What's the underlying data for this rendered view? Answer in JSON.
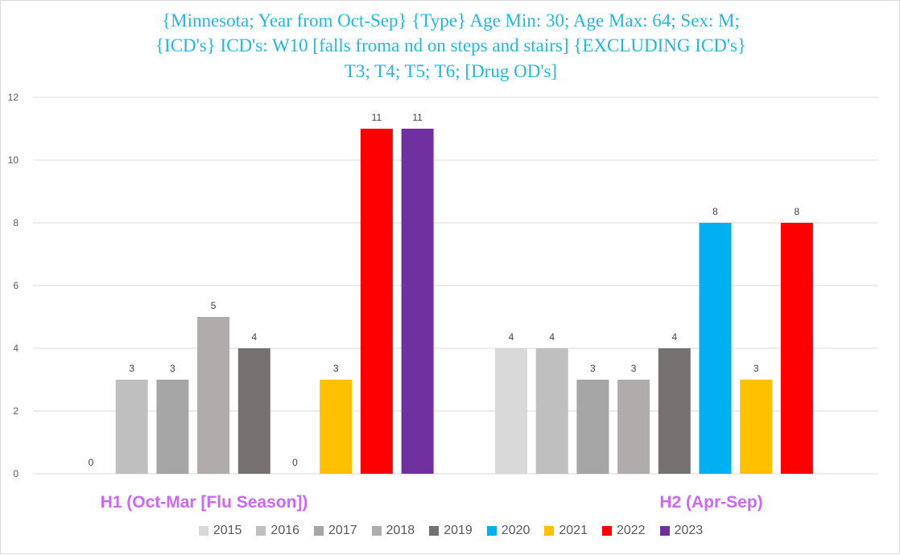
{
  "chart_data": {
    "type": "bar",
    "title_lines": [
      "{Minnesota; Year from Oct-Sep} {Type} Age Min: 30; Age Max: 64; Sex: M;",
      "{ICD's} ICD's:  W10 [falls froma nd on steps and stairs]  {EXCLUDING ICD's}",
      "T3; T4; T5; T6; [Drug OD's]"
    ],
    "categories": [
      "H1 (Oct-Mar [Flu Season])",
      "H2 (Apr-Sep)"
    ],
    "series": [
      {
        "name": "2015",
        "color": "#d9d9d9",
        "values": [
          0,
          4
        ]
      },
      {
        "name": "2016",
        "color": "#bfbfbf",
        "values": [
          3,
          4
        ]
      },
      {
        "name": "2017",
        "color": "#a6a6a6",
        "values": [
          3,
          3
        ]
      },
      {
        "name": "2018",
        "color": "#b0acac",
        "values": [
          5,
          3
        ]
      },
      {
        "name": "2019",
        "color": "#767171",
        "values": [
          4,
          4
        ]
      },
      {
        "name": "2020",
        "color": "#00b0f0",
        "values": [
          0,
          8
        ]
      },
      {
        "name": "2021",
        "color": "#ffc000",
        "values": [
          3,
          3
        ]
      },
      {
        "name": "2022",
        "color": "#ff0000",
        "values": [
          11,
          8
        ]
      },
      {
        "name": "2023",
        "color": "#7030a0",
        "values": [
          11,
          null
        ]
      }
    ],
    "ylim": [
      0,
      12
    ],
    "yticks": [
      0,
      2,
      4,
      6,
      8,
      10,
      12
    ],
    "grid": true,
    "legend_position": "bottom",
    "category_label_color": "#cc66ff",
    "xlabel": "",
    "ylabel": ""
  }
}
